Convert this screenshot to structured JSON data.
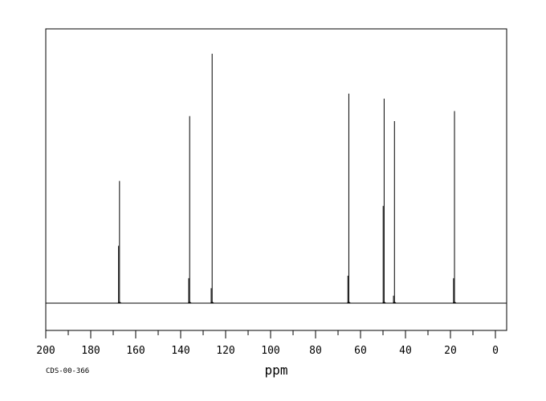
{
  "chart_data": {
    "type": "line",
    "title": "",
    "xlabel": "ppm",
    "ylabel": "",
    "xlim": [
      200,
      -5
    ],
    "x_reversed": true,
    "ylim": [
      -0.25,
      1.05
    ],
    "grid": false,
    "tick_labels": [
      "200",
      "180",
      "160",
      "140",
      "120",
      "100",
      "80",
      "60",
      "40",
      "20",
      "0"
    ],
    "tick_values": [
      200,
      180,
      160,
      140,
      120,
      100,
      80,
      60,
      40,
      20,
      0
    ],
    "minor_tick_values": [
      190,
      170,
      150,
      130,
      110,
      90,
      70,
      50,
      30,
      10
    ],
    "peaks": [
      {
        "ppm": 167.2,
        "intensity": 0.49,
        "sub_intensity": 0.23
      },
      {
        "ppm": 136.0,
        "intensity": 0.75,
        "sub_intensity": 0.1
      },
      {
        "ppm": 126.0,
        "intensity": 1.0,
        "sub_intensity": 0.06
      },
      {
        "ppm": 65.2,
        "intensity": 0.84,
        "sub_intensity": 0.11
      },
      {
        "ppm": 49.5,
        "intensity": 0.82,
        "sub_intensity": 0.39
      },
      {
        "ppm": 44.9,
        "intensity": 0.73,
        "sub_intensity": 0.03
      },
      {
        "ppm": 18.2,
        "intensity": 0.77,
        "sub_intensity": 0.1
      }
    ]
  },
  "footer": {
    "spectrum_id": "CDS-00-366"
  }
}
